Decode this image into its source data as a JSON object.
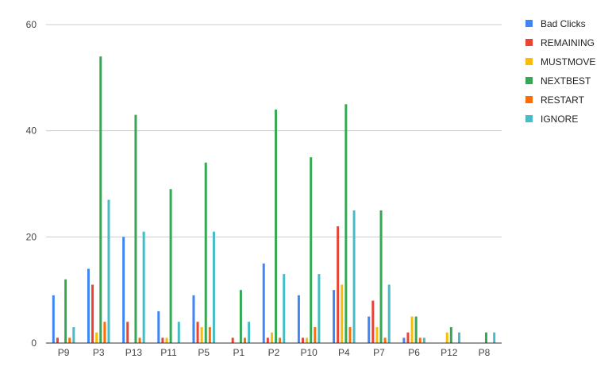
{
  "chart_data": {
    "type": "bar",
    "title": "",
    "xlabel": "",
    "ylabel": "",
    "ylim": [
      0,
      60
    ],
    "yticks": [
      0,
      20,
      40,
      60
    ],
    "grid": true,
    "legend_position": "right",
    "categories": [
      "P9",
      "P3",
      "P13",
      "P11",
      "P5",
      "P1",
      "P2",
      "P10",
      "P4",
      "P7",
      "P6",
      "P12",
      "P8"
    ],
    "series": [
      {
        "name": "Bad Clicks",
        "color": "#4285f4",
        "values": [
          9,
          14,
          20,
          6,
          9,
          0,
          15,
          9,
          10,
          5,
          1,
          0,
          0
        ]
      },
      {
        "name": "REMAINING",
        "color": "#ea4335",
        "values": [
          1,
          11,
          4,
          1,
          4,
          1,
          1,
          1,
          22,
          8,
          2,
          0,
          0
        ]
      },
      {
        "name": "MUSTMOVE",
        "color": "#fbbc04",
        "values": [
          0,
          2,
          0,
          1,
          3,
          0,
          2,
          1,
          11,
          3,
          5,
          2,
          0
        ]
      },
      {
        "name": "NEXTBEST",
        "color": "#34a853",
        "values": [
          12,
          54,
          43,
          29,
          34,
          10,
          44,
          35,
          45,
          25,
          5,
          3,
          2
        ]
      },
      {
        "name": "RESTART",
        "color": "#ff6d01",
        "values": [
          1,
          4,
          1,
          0,
          3,
          1,
          1,
          3,
          3,
          1,
          1,
          0,
          0
        ]
      },
      {
        "name": "IGNORE",
        "color": "#46bdc6",
        "values": [
          3,
          27,
          21,
          4,
          21,
          4,
          13,
          13,
          25,
          11,
          1,
          2,
          2
        ]
      }
    ]
  }
}
